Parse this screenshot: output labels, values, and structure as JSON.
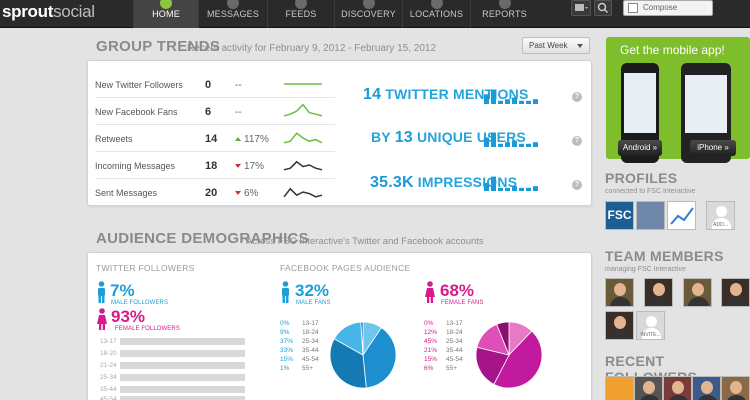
{
  "app": {
    "logo_part1": "sprout",
    "logo_part2": "social"
  },
  "nav": {
    "items": [
      {
        "label": "HOME",
        "active": true
      },
      {
        "label": "MESSAGES",
        "active": false
      },
      {
        "label": "FEEDS",
        "active": false
      },
      {
        "label": "DISCOVERY",
        "active": false
      },
      {
        "label": "LOCATIONS",
        "active": false
      },
      {
        "label": "REPORTS",
        "active": false
      }
    ],
    "compose_label": "Compose"
  },
  "group_trends": {
    "title": "GROUP TRENDS",
    "subtitle": "Recent activity for February 9, 2012 - February 15, 2012",
    "period": "Past Week",
    "rows": [
      {
        "label": "New Twitter Followers",
        "value": "0",
        "change": "--",
        "direction": "none",
        "trend": [
          5,
          5,
          5,
          5,
          5,
          5,
          5
        ],
        "color": "#6cbf3a"
      },
      {
        "label": "New Facebook Fans",
        "value": "6",
        "change": "--",
        "direction": "none",
        "trend": [
          2,
          3,
          5,
          9,
          4,
          3,
          2
        ],
        "color": "#6cbf3a"
      },
      {
        "label": "Retweets",
        "value": "14",
        "change": "117%",
        "direction": "up",
        "trend": [
          2,
          3,
          8,
          5,
          3,
          4,
          2
        ],
        "color": "#6cbf3a"
      },
      {
        "label": "Incoming Messages",
        "value": "18",
        "change": "17%",
        "direction": "down",
        "trend": [
          2,
          3,
          7,
          4,
          5,
          3,
          2
        ],
        "color": "#333333"
      },
      {
        "label": "Sent Messages",
        "value": "20",
        "change": "6%",
        "direction": "down",
        "trend": [
          2,
          7,
          3,
          5,
          4,
          2,
          3
        ],
        "color": "#333333"
      }
    ],
    "big_stats": [
      {
        "number": "14",
        "text": "TWITTER MENTIONS",
        "prefix": "",
        "bars": [
          6,
          9,
          2,
          3,
          4,
          2,
          2,
          3
        ]
      },
      {
        "number": "13",
        "text": "UNIQUE USERS",
        "prefix": "BY",
        "bars": [
          6,
          9,
          2,
          3,
          4,
          2,
          2,
          3
        ]
      },
      {
        "number": "35.3K",
        "text": "IMPRESSIONS",
        "prefix": "",
        "bars": [
          5,
          9,
          2,
          2,
          3,
          2,
          2,
          3
        ]
      }
    ],
    "help_glyph": "?"
  },
  "audience": {
    "title": "AUDIENCE DEMOGRAPHICS",
    "subtitle": "Across FSC Interactive's Twitter and Facebook accounts",
    "twitter": {
      "heading": "TWITTER FOLLOWERS",
      "male_pct": "7%",
      "male_label": "MALE FOLLOWERS",
      "female_pct": "93%",
      "female_label": "FEMALE FOLLOWERS",
      "ages": [
        "13-17",
        "18-20",
        "21-24",
        "25-34",
        "35-44",
        "45-54"
      ]
    },
    "facebook": {
      "heading": "FACEBOOK PAGES AUDIENCE",
      "male_pct": "32%",
      "male_label": "MALE FANS",
      "female_pct": "68%",
      "female_label": "FEMALE FANS",
      "male_ages": [
        {
          "pct": "0%",
          "range": "13-17",
          "value": 0
        },
        {
          "pct": "9%",
          "range": "18-24",
          "value": 9
        },
        {
          "pct": "37%",
          "range": "25-34",
          "value": 37
        },
        {
          "pct": "33%",
          "range": "35-44",
          "value": 33
        },
        {
          "pct": "15%",
          "range": "45-54",
          "value": 15
        },
        {
          "pct": "1%",
          "range": "55+",
          "value": 1
        }
      ],
      "female_ages": [
        {
          "pct": "0%",
          "range": "13-17",
          "value": 0
        },
        {
          "pct": "12%",
          "range": "18-24",
          "value": 12
        },
        {
          "pct": "45%",
          "range": "25-34",
          "value": 45
        },
        {
          "pct": "21%",
          "range": "35-44",
          "value": 21
        },
        {
          "pct": "15%",
          "range": "45-54",
          "value": 15
        },
        {
          "pct": "6%",
          "range": "55+",
          "value": 6
        }
      ]
    },
    "colors": {
      "male": "#1d9ed9",
      "female": "#d91a8c"
    }
  },
  "sidebar": {
    "mobile_title": "Get the mobile app!",
    "android_label": "Android »",
    "iphone_label": "iPhone »",
    "profiles_title": "PROFILES",
    "profiles_sub": "connected to FSC Interactive",
    "profile_fsc": "FSC",
    "profile_add": "ADD...",
    "team_title": "TEAM MEMBERS",
    "team_sub": "managing FSC Interactive",
    "team_invite": "INVITE...",
    "followers_title": "RECENT FOLLOWERS"
  }
}
